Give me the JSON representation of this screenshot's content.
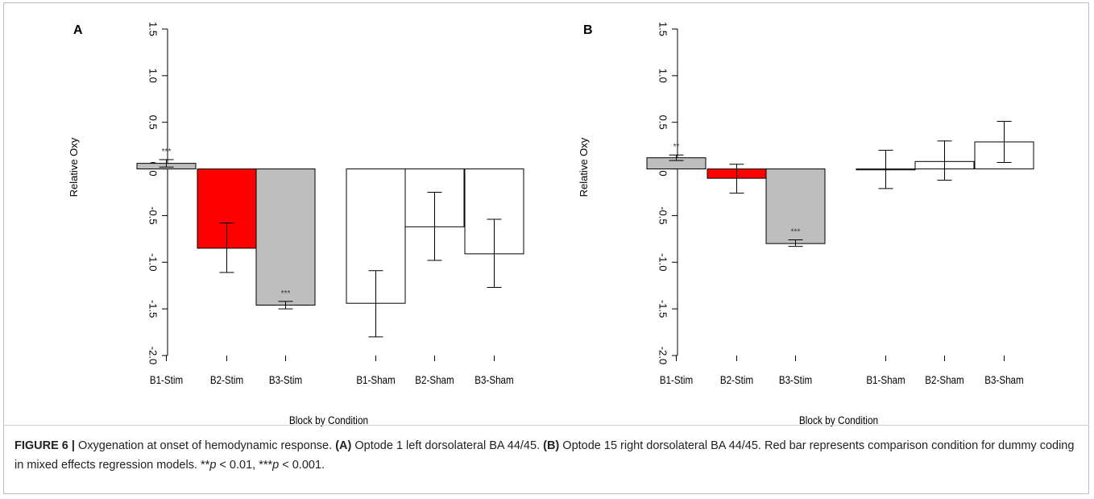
{
  "chart_data": [
    {
      "type": "bar",
      "panel_label": "A",
      "ylabel": "Relative Oxy",
      "xlabel": "Block by Condition",
      "ylim": [
        -2.0,
        1.5
      ],
      "yticks": [
        "-2.0",
        "-1.5",
        "-1.0",
        "-0.5",
        "0.0",
        "0.5",
        "1.0",
        "1.5"
      ],
      "categories": [
        "B1-Stim",
        "B2-Stim",
        "B3-Stim",
        "B1-Sham",
        "B2-Sham",
        "B3-Sham"
      ],
      "values": [
        0.06,
        -0.85,
        -1.46,
        -1.44,
        -0.62,
        -0.91
      ],
      "error_low": [
        0.02,
        -1.11,
        -1.5,
        -1.8,
        -0.98,
        -1.27
      ],
      "error_high": [
        0.1,
        -0.58,
        -1.42,
        -1.09,
        -0.25,
        -0.54
      ],
      "fills": [
        "#bebebe",
        "#ff0000",
        "#bebebe",
        "#ffffff",
        "#ffffff",
        "#ffffff"
      ],
      "annotations": [
        "***",
        "",
        "***",
        "",
        "",
        ""
      ]
    },
    {
      "type": "bar",
      "panel_label": "B",
      "ylabel": "Relative Oxy",
      "xlabel": "Block by Condition",
      "ylim": [
        -2.0,
        1.5
      ],
      "yticks": [
        "-2.0",
        "-1.5",
        "-1.0",
        "-0.5",
        "0.0",
        "0.5",
        "1.0",
        "1.5"
      ],
      "categories": [
        "B1-Stim",
        "B2-Stim",
        "B3-Stim",
        "B1-Sham",
        "B2-Sham",
        "B3-Sham"
      ],
      "values": [
        0.12,
        -0.1,
        -0.8,
        -0.01,
        0.08,
        0.29
      ],
      "error_low": [
        0.09,
        -0.26,
        -0.83,
        -0.21,
        -0.12,
        0.07
      ],
      "error_high": [
        0.15,
        0.05,
        -0.76,
        0.2,
        0.3,
        0.51
      ],
      "fills": [
        "#bebebe",
        "#ff0000",
        "#bebebe",
        "#ffffff",
        "#ffffff",
        "#ffffff"
      ],
      "annotations": [
        "**",
        "",
        "***",
        "",
        "",
        ""
      ]
    }
  ],
  "caption": {
    "label": "FIGURE 6 |",
    "text1": " Oxygenation at onset of hemodynamic response. ",
    "a_label": "(A)",
    "a_text": " Optode 1 left dorsolateral BA 44/45. ",
    "b_label": "(B)",
    "b_text": " Optode 15 right dorsolateral BA 44/45. Red bar represents comparison condition for dummy coding in mixed effects regression models. **",
    "p1": "p",
    "t2": " < 0.01, ***",
    "p2": "p",
    "t3": " < 0.001."
  }
}
